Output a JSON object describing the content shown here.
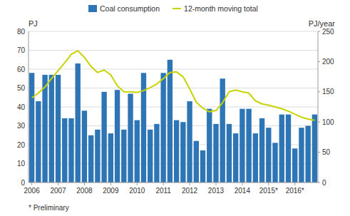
{
  "chart_data": {
    "type": "bar",
    "y_label": "PJ",
    "y2_label": "PJ/year",
    "annotations": [
      "* Preliminary"
    ],
    "categories": [
      "2006",
      null,
      null,
      null,
      "2007",
      null,
      null,
      null,
      "2008",
      null,
      null,
      null,
      "2009",
      null,
      null,
      null,
      "2010",
      null,
      null,
      null,
      "2011",
      null,
      null,
      null,
      "2012",
      null,
      null,
      null,
      "2013",
      null,
      null,
      null,
      "2014",
      null,
      null,
      null,
      "2015*",
      null,
      null,
      null,
      "2016*",
      null,
      null,
      null
    ],
    "series": [
      {
        "name": "Coal consumption",
        "type": "bar",
        "color": "#2e75b6",
        "values": [
          58,
          43,
          57,
          57,
          57,
          34,
          34,
          63,
          38,
          25,
          28,
          48,
          26,
          49,
          28,
          47,
          33,
          58,
          28,
          31,
          58,
          65,
          33,
          32,
          43,
          22,
          17,
          39,
          31,
          55,
          31,
          26,
          39,
          39,
          26,
          34,
          29,
          21,
          36,
          36,
          18,
          29,
          30,
          36
        ]
      },
      {
        "name": "12-month moving total",
        "type": "line",
        "axis": "y2",
        "color": "#c8d400",
        "values": [
          140,
          148,
          158,
          172,
          185,
          198,
          212,
          218,
          207,
          192,
          182,
          186,
          178,
          160,
          150,
          150,
          149,
          152,
          157,
          163,
          172,
          182,
          183,
          175,
          155,
          133,
          123,
          117,
          119,
          132,
          150,
          153,
          150,
          148,
          135,
          130,
          128,
          125,
          122,
          118,
          113,
          108,
          105,
          103
        ]
      }
    ],
    "ylim": [
      0,
      80
    ],
    "yticks": [
      0,
      10,
      20,
      30,
      40,
      50,
      60,
      70,
      80
    ],
    "y2lim": [
      0,
      250
    ],
    "y2ticks": [
      0,
      50,
      100,
      150,
      200,
      250
    ],
    "grid": true,
    "legend": "top"
  }
}
